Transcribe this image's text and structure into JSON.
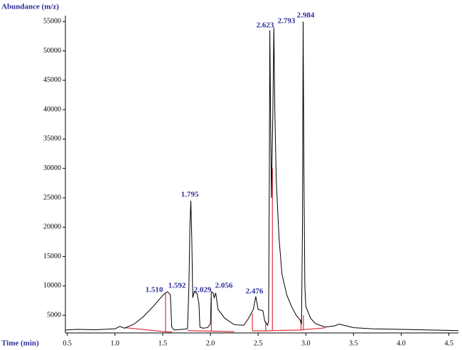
{
  "chart_data": {
    "type": "line",
    "y_label": "Abundance (m/z)",
    "x_label": "Time (min)",
    "color": "#000000",
    "x": [
      0.48,
      0.6,
      0.8,
      1.0,
      1.05,
      1.1,
      1.2,
      1.3,
      1.4,
      1.48,
      1.52,
      1.55,
      1.58,
      1.595,
      1.62,
      1.7,
      1.76,
      1.775,
      1.785,
      1.795,
      1.805,
      1.815,
      1.83,
      1.86,
      1.88,
      1.89,
      1.92,
      1.97,
      2.0,
      2.01,
      2.029,
      2.04,
      2.056,
      2.08,
      2.15,
      2.25,
      2.35,
      2.4,
      2.45,
      2.476,
      2.5,
      2.55,
      2.57,
      2.6,
      2.61,
      2.618,
      2.623,
      2.63,
      2.64,
      2.655,
      2.665,
      2.675,
      2.69,
      2.72,
      2.75,
      2.8,
      2.85,
      2.9,
      2.94,
      2.955,
      2.965,
      2.972,
      2.98,
      2.99,
      3.0,
      3.05,
      3.1,
      3.2,
      3.3,
      3.35,
      3.4,
      3.5,
      3.7,
      4.0,
      4.3,
      4.6
    ],
    "values": [
      2500,
      2600,
      2550,
      2700,
      3100,
      2800,
      3500,
      4800,
      6500,
      8000,
      8700,
      9000,
      8500,
      3000,
      2500,
      2600,
      2700,
      10000,
      20000,
      24500,
      18000,
      8000,
      9000,
      8700,
      7000,
      3000,
      2800,
      2900,
      3500,
      9000,
      8800,
      8000,
      8800,
      6000,
      4500,
      3400,
      3300,
      4500,
      6000,
      8200,
      6000,
      5800,
      4000,
      3300,
      4000,
      30000,
      53500,
      40000,
      25000,
      40000,
      54000,
      40000,
      28000,
      18000,
      12000,
      8500,
      6500,
      5000,
      4200,
      3500,
      20000,
      55000,
      30000,
      10000,
      6500,
      4500,
      3600,
      3000,
      3200,
      3500,
      3300,
      2900,
      2700,
      2600,
      2500,
      2400
    ],
    "baseline": {
      "color": "#e0303a",
      "x": [
        1.1,
        1.53,
        1.53,
        null,
        1.53,
        1.6,
        null,
        1.76,
        2.01,
        2.01,
        null,
        2.01,
        2.25,
        null,
        2.44,
        2.44,
        null,
        2.44,
        2.58,
        2.58,
        null,
        2.58,
        2.65,
        2.65,
        null,
        2.65,
        2.95,
        2.95,
        null,
        2.95,
        2.975,
        2.975,
        null,
        2.975,
        3.2
      ],
      "values": [
        2900,
        2200,
        8700,
        null,
        2200,
        2150,
        null,
        2400,
        2300,
        8000,
        null,
        2300,
        2200,
        null,
        2350,
        5300,
        null,
        2350,
        2350,
        4000,
        null,
        2350,
        2400,
        30000,
        null,
        2400,
        2500,
        4300,
        null,
        2500,
        2550,
        5000,
        null,
        2550,
        2850
      ]
    },
    "peak_labels": [
      "1.510",
      "1.592",
      "1.795",
      "2.029",
      "2.056",
      "2.476",
      "2.623",
      "2.793",
      "2.984"
    ],
    "xlim": [
      0.48,
      4.6
    ],
    "ylim": [
      2000,
      56000
    ],
    "xticks": [
      0.5,
      {
        "value": 1.0,
        "label": "1.0"
      },
      1.5,
      {
        "value": 2.0,
        "label": "2.0"
      },
      2.5,
      {
        "value": 3.0,
        "label": "3.0"
      },
      3.5,
      {
        "value": 4.0,
        "label": "4.0"
      },
      4.5
    ],
    "yticks": [
      5000,
      10000,
      15000,
      20000,
      25000,
      30000,
      35000,
      40000,
      45000,
      50000,
      55000
    ]
  }
}
